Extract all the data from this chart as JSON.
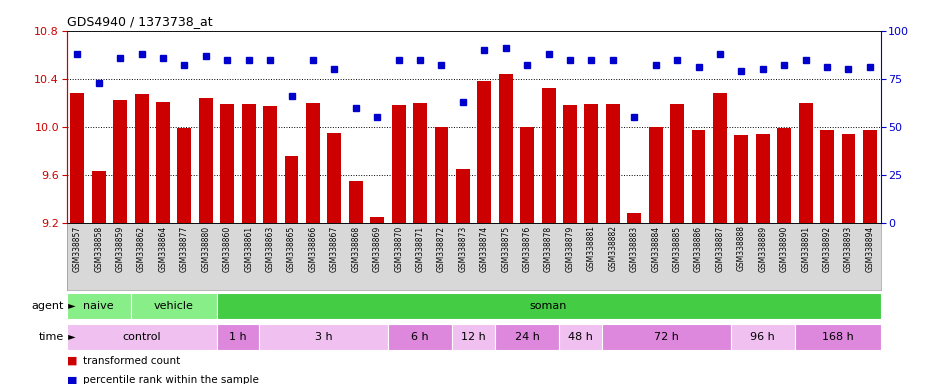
{
  "title": "GDS4940 / 1373738_at",
  "samples": [
    "GSM338857",
    "GSM338858",
    "GSM338859",
    "GSM338862",
    "GSM338864",
    "GSM338877",
    "GSM338880",
    "GSM338860",
    "GSM338861",
    "GSM338863",
    "GSM338865",
    "GSM338866",
    "GSM338867",
    "GSM338868",
    "GSM338869",
    "GSM338870",
    "GSM338871",
    "GSM338872",
    "GSM338873",
    "GSM338874",
    "GSM338875",
    "GSM338876",
    "GSM338878",
    "GSM338879",
    "GSM338881",
    "GSM338882",
    "GSM338883",
    "GSM338884",
    "GSM338885",
    "GSM338886",
    "GSM338887",
    "GSM338888",
    "GSM338889",
    "GSM338890",
    "GSM338891",
    "GSM338892",
    "GSM338893",
    "GSM338894"
  ],
  "bar_values": [
    10.28,
    9.63,
    10.22,
    10.27,
    10.21,
    9.99,
    10.24,
    10.19,
    10.19,
    10.17,
    9.76,
    10.2,
    9.95,
    9.55,
    9.25,
    10.18,
    10.2,
    10.0,
    9.65,
    10.38,
    10.44,
    10.0,
    10.32,
    10.18,
    10.19,
    10.19,
    9.28,
    10.0,
    10.19,
    9.97,
    10.28,
    9.93,
    9.94,
    9.99,
    10.2,
    9.97,
    9.94,
    9.97
  ],
  "percentile_values": [
    88,
    73,
    86,
    88,
    86,
    82,
    87,
    85,
    85,
    85,
    66,
    85,
    80,
    60,
    55,
    85,
    85,
    82,
    63,
    90,
    91,
    82,
    88,
    85,
    85,
    85,
    55,
    82,
    85,
    81,
    88,
    79,
    80,
    82,
    85,
    81,
    80,
    81
  ],
  "bar_color": "#cc0000",
  "dot_color": "#0000cc",
  "ylim_left": [
    9.2,
    10.8
  ],
  "ylim_right": [
    0,
    100
  ],
  "yticks_left": [
    9.2,
    9.6,
    10.0,
    10.4,
    10.8
  ],
  "yticks_right": [
    0,
    25,
    50,
    75,
    100
  ],
  "grid_values": [
    9.6,
    10.0,
    10.4
  ],
  "agent_groups": [
    {
      "label": "naive",
      "start": 0,
      "end": 3,
      "color": "#88ee88"
    },
    {
      "label": "vehicle",
      "start": 3,
      "end": 7,
      "color": "#88ee88"
    },
    {
      "label": "soman",
      "start": 7,
      "end": 38,
      "color": "#44cc44"
    }
  ],
  "time_groups": [
    {
      "label": "control",
      "start": 0,
      "end": 7,
      "color": "#f0c0f0"
    },
    {
      "label": "1 h",
      "start": 7,
      "end": 9,
      "color": "#dd88dd"
    },
    {
      "label": "3 h",
      "start": 9,
      "end": 15,
      "color": "#f0c0f0"
    },
    {
      "label": "6 h",
      "start": 15,
      "end": 18,
      "color": "#dd88dd"
    },
    {
      "label": "12 h",
      "start": 18,
      "end": 20,
      "color": "#f0c0f0"
    },
    {
      "label": "24 h",
      "start": 20,
      "end": 23,
      "color": "#dd88dd"
    },
    {
      "label": "48 h",
      "start": 23,
      "end": 25,
      "color": "#f0c0f0"
    },
    {
      "label": "72 h",
      "start": 25,
      "end": 31,
      "color": "#dd88dd"
    },
    {
      "label": "96 h",
      "start": 31,
      "end": 34,
      "color": "#f0c0f0"
    },
    {
      "label": "168 h",
      "start": 34,
      "end": 38,
      "color": "#dd88dd"
    }
  ],
  "fig_width": 9.25,
  "fig_height": 3.84,
  "dpi": 100
}
